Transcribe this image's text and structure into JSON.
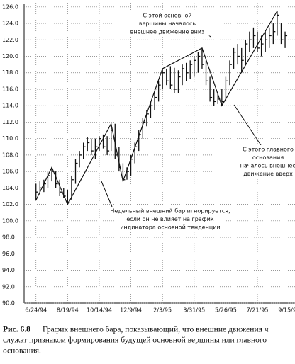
{
  "chart_data": {
    "type": "hlc",
    "annotations": [
      [
        "С этой основной",
        "вершины началось",
        "внешнее движение вниз"
      ],
      [
        "С этого главного",
        "основания",
        "началось внешнее",
        "движение вверх"
      ],
      [
        "Недельный внешний бар игнорируется,",
        "если он не влияет на график",
        "индикатора основной тенденции"
      ]
    ],
    "x": [
      0,
      1,
      2,
      3,
      4,
      5,
      6,
      7,
      8,
      9,
      10,
      11,
      12,
      13,
      14,
      15,
      16,
      17,
      18,
      19,
      20,
      21,
      22,
      23,
      24,
      25,
      26,
      27,
      28,
      29,
      30,
      31,
      32,
      33,
      34,
      35,
      36,
      37,
      38,
      39,
      40,
      41,
      42,
      43,
      44,
      45,
      46,
      47,
      48,
      49,
      50,
      51,
      52,
      53,
      54,
      55,
      56,
      57,
      58,
      59,
      60,
      61,
      62,
      63
    ],
    "high": [
      104.5,
      104.8,
      105,
      106,
      106.5,
      106,
      105,
      104,
      103.8,
      105.5,
      107.5,
      108.5,
      109.5,
      110.2,
      110,
      110,
      110.3,
      110.5,
      110.3,
      111.5,
      111.8,
      109,
      107,
      106.5,
      108,
      109.5,
      111,
      112.5,
      113.5,
      114.5,
      115.5,
      117,
      118.5,
      118.5,
      118.8,
      118.6,
      118.3,
      119,
      119.2,
      119.5,
      120,
      120.5,
      121,
      119.5,
      117.5,
      116,
      115.5,
      116,
      117.5,
      119.5,
      121,
      121.5,
      121,
      122,
      123,
      123.5,
      123,
      122.5,
      123,
      123.5,
      124,
      125.5,
      124,
      123
    ],
    "low": [
      102.5,
      103.2,
      103.5,
      104,
      104.8,
      104,
      103,
      102.8,
      102,
      102.5,
      104.5,
      106.5,
      107.5,
      108.5,
      108,
      107.5,
      108.5,
      108.8,
      108,
      108.5,
      107.5,
      106,
      104.8,
      105,
      105.5,
      107,
      108.5,
      110,
      111.5,
      112.5,
      113.5,
      114.5,
      116,
      116.5,
      116,
      115.5,
      115.5,
      116.5,
      117,
      117.2,
      117.5,
      118,
      118.5,
      116.5,
      114.5,
      114,
      114.2,
      114,
      114.5,
      116.5,
      118.5,
      119,
      118,
      119,
      120.5,
      121,
      120.5,
      120,
      120.5,
      121,
      121.5,
      122.5,
      121.5,
      121
    ],
    "close": [
      103.5,
      104,
      104.5,
      105.5,
      106,
      104.5,
      103.5,
      103,
      102.3,
      105,
      107,
      108,
      109,
      109.5,
      108.5,
      109,
      110,
      109,
      108.5,
      111,
      108,
      106.5,
      105,
      106,
      107.5,
      109,
      110.5,
      112,
      113,
      114,
      115,
      116.5,
      118,
      117,
      116.5,
      116,
      117.5,
      118.5,
      118,
      119,
      119.5,
      120,
      119,
      117,
      115,
      114.5,
      114.8,
      114.5,
      117,
      119,
      120.5,
      120,
      119.5,
      121.5,
      122,
      122.5,
      121,
      121.5,
      122,
      122.5,
      123,
      125,
      122,
      122.5
    ],
    "swing": {
      "x": [
        0,
        4,
        8,
        19,
        22,
        32,
        42,
        47,
        61
      ],
      "values": [
        102.5,
        106.5,
        102,
        111.8,
        104.8,
        118.5,
        121,
        114,
        125.5
      ]
    },
    "xlim": [
      -3,
      65.5
    ],
    "xticks": [
      {
        "value": 0,
        "label": "6/24/94"
      },
      {
        "value": 8,
        "label": "8/19/94"
      },
      {
        "value": 16,
        "label": "10/14/94"
      },
      {
        "value": 24,
        "label": "12/9/94"
      },
      {
        "value": 32,
        "label": "2/3/95"
      },
      {
        "value": 40,
        "label": "3/31/95"
      },
      {
        "value": 48,
        "label": "5/26/95"
      },
      {
        "value": 56,
        "label": "7/21/95"
      },
      {
        "value": 64,
        "label": "9/15/95"
      }
    ],
    "ylim": [
      90,
      126.5
    ],
    "yticks": [
      {
        "value": 90,
        "label": "90.0"
      },
      {
        "value": 92,
        "label": "92.0"
      },
      {
        "value": 94,
        "label": "94.0"
      },
      {
        "value": 96,
        "label": "96.0"
      },
      {
        "value": 98,
        "label": "98.0"
      },
      {
        "value": 100,
        "label": "100.0"
      },
      {
        "value": 102,
        "label": "102.0"
      },
      {
        "value": 104,
        "label": "104.0"
      },
      {
        "value": 106,
        "label": "106.0"
      },
      {
        "value": 108,
        "label": "108.0"
      },
      {
        "value": 110,
        "label": "110.0"
      },
      {
        "value": 112,
        "label": "112.0"
      },
      {
        "value": 114,
        "label": "114.0"
      },
      {
        "value": 116,
        "label": "116.0"
      },
      {
        "value": 118,
        "label": "118.0"
      },
      {
        "value": 120,
        "label": "120.0"
      },
      {
        "value": 122,
        "label": "122.0"
      },
      {
        "value": 124,
        "label": "124.0"
      },
      {
        "value": 126,
        "label": "126.0"
      }
    ],
    "grid": true,
    "color": "#111"
  },
  "caption": {
    "label": "Рис. 6.8",
    "lines": [
      "График внешнего бара, показывающий, что внешние движения ч",
      "служат признаком формирования будущей основной вершины или главного",
      "основания."
    ]
  }
}
